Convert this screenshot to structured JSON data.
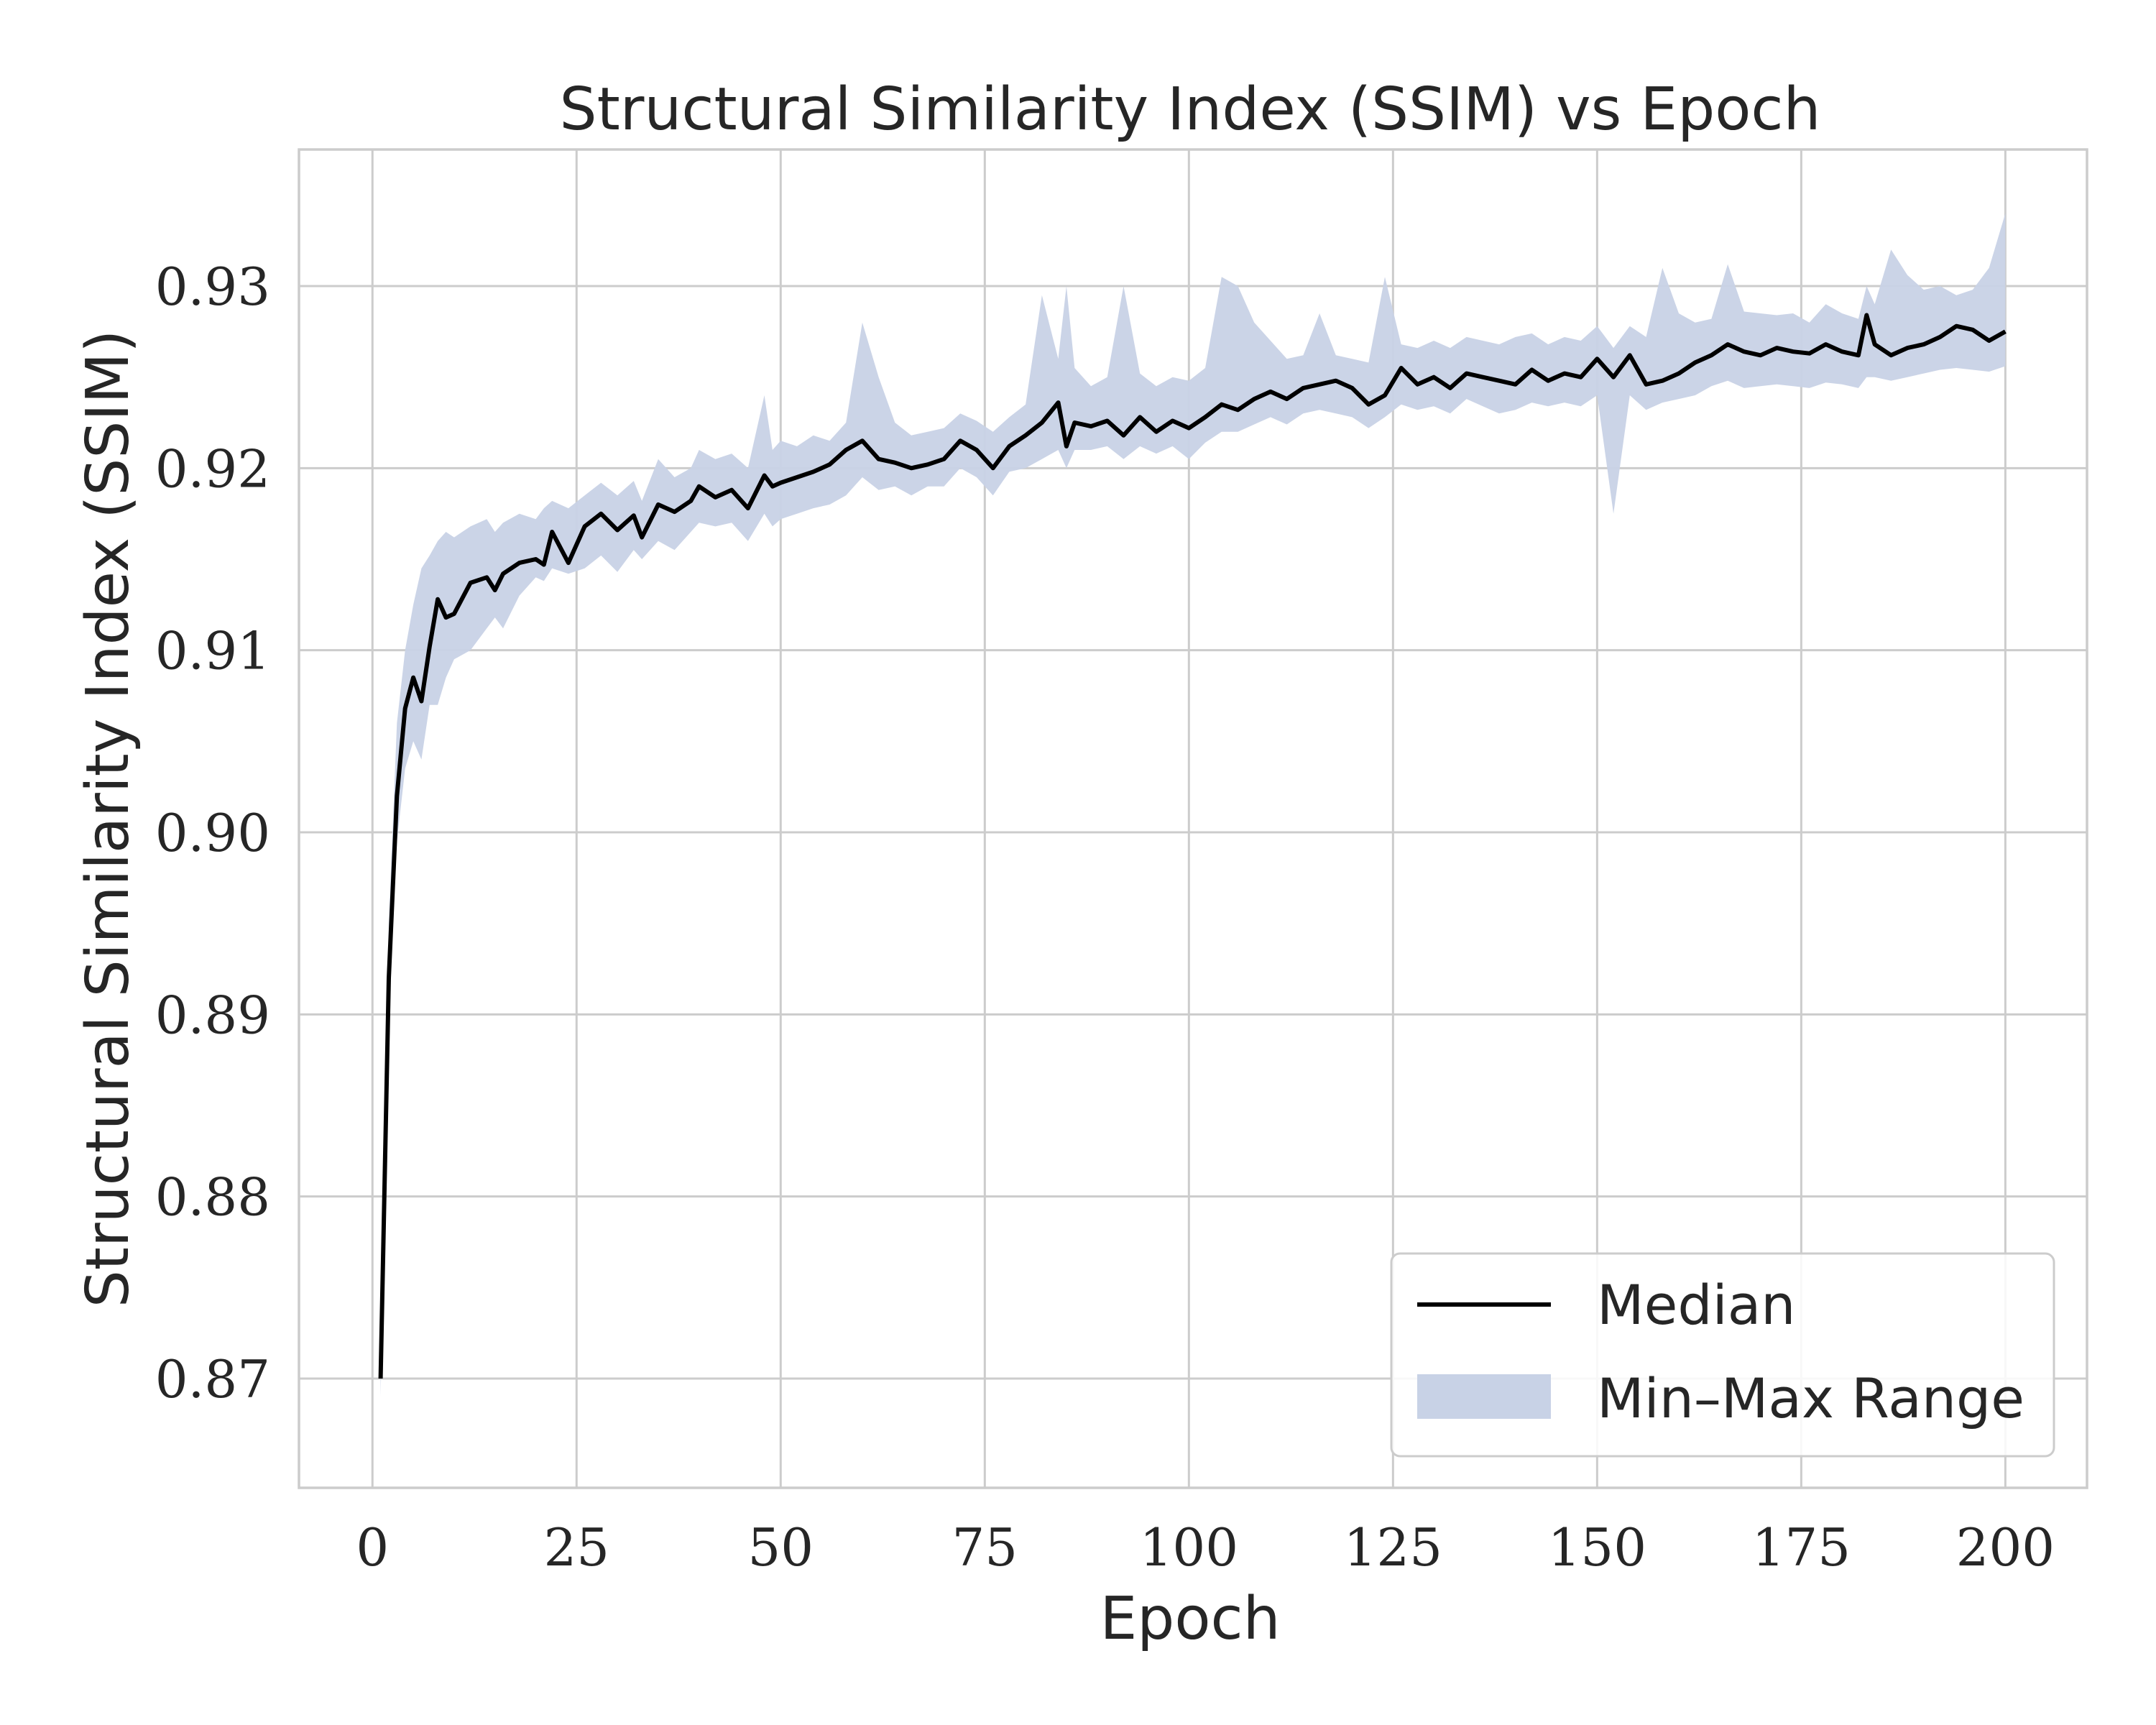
{
  "chart_data": {
    "type": "line",
    "title": "Structural Similarity Index (SSIM) vs Epoch",
    "xlabel": "Epoch",
    "ylabel": "Structural Similarity Index (SSIM)",
    "xlim": [
      -9,
      210
    ],
    "ylim": [
      0.864,
      0.9375
    ],
    "xticks": [
      0,
      25,
      50,
      75,
      100,
      125,
      150,
      175,
      200
    ],
    "xtick_labels": [
      "0",
      "25",
      "50",
      "75",
      "100",
      "125",
      "150",
      "175",
      "200"
    ],
    "yticks": [
      0.87,
      0.88,
      0.89,
      0.9,
      0.91,
      0.92,
      0.93
    ],
    "ytick_labels": [
      "0.87",
      "0.88",
      "0.89",
      "0.90",
      "0.91",
      "0.92",
      "0.93"
    ],
    "grid": true,
    "legend_position": "bottom-right",
    "colors": {
      "median": "#000000",
      "range": "#c8d2e6",
      "grid": "#cccccc",
      "text": "#262626"
    },
    "series": [
      {
        "name": "Median",
        "style": "line",
        "x": [
          1,
          2,
          3,
          4,
          5,
          6,
          7,
          8,
          9,
          10,
          12,
          14,
          15,
          16,
          18,
          20,
          21,
          22,
          24,
          26,
          28,
          30,
          32,
          33,
          35,
          37,
          39,
          40,
          42,
          44,
          46,
          48,
          49,
          50,
          52,
          54,
          56,
          58,
          60,
          62,
          64,
          66,
          68,
          70,
          72,
          74,
          76,
          78,
          80,
          82,
          84,
          85,
          86,
          88,
          90,
          92,
          94,
          96,
          98,
          100,
          102,
          104,
          106,
          108,
          110,
          112,
          114,
          116,
          118,
          120,
          122,
          124,
          126,
          128,
          130,
          132,
          134,
          136,
          138,
          140,
          142,
          144,
          146,
          148,
          150,
          152,
          154,
          156,
          158,
          160,
          162,
          164,
          166,
          168,
          170,
          172,
          174,
          176,
          178,
          180,
          182,
          183,
          184,
          186,
          188,
          190,
          192,
          194,
          196,
          198,
          200
        ],
        "y": [
          0.87,
          0.892,
          0.902,
          0.9068,
          0.9085,
          0.9072,
          0.9102,
          0.9128,
          0.9118,
          0.912,
          0.9137,
          0.914,
          0.9133,
          0.9142,
          0.9148,
          0.915,
          0.9147,
          0.9165,
          0.9148,
          0.9168,
          0.9175,
          0.9166,
          0.9174,
          0.9162,
          0.918,
          0.9176,
          0.9182,
          0.919,
          0.9184,
          0.9188,
          0.9178,
          0.9196,
          0.919,
          0.9192,
          0.9195,
          0.9198,
          0.9202,
          0.921,
          0.9215,
          0.9205,
          0.9203,
          0.92,
          0.9202,
          0.9205,
          0.9215,
          0.921,
          0.92,
          0.9212,
          0.9218,
          0.9225,
          0.9236,
          0.9212,
          0.9225,
          0.9223,
          0.9226,
          0.9218,
          0.9228,
          0.922,
          0.9226,
          0.9222,
          0.9228,
          0.9235,
          0.9232,
          0.9238,
          0.9242,
          0.9238,
          0.9244,
          0.9246,
          0.9248,
          0.9244,
          0.9235,
          0.924,
          0.9255,
          0.9246,
          0.925,
          0.9244,
          0.9252,
          0.925,
          0.9248,
          0.9246,
          0.9254,
          0.9248,
          0.9252,
          0.925,
          0.926,
          0.925,
          0.9262,
          0.9246,
          0.9248,
          0.9252,
          0.9258,
          0.9262,
          0.9268,
          0.9264,
          0.9262,
          0.9266,
          0.9264,
          0.9263,
          0.9268,
          0.9264,
          0.9262,
          0.9284,
          0.9268,
          0.9262,
          0.9266,
          0.9268,
          0.9272,
          0.9278,
          0.9276,
          0.927,
          0.9275
        ]
      },
      {
        "name": "Min–Max Range",
        "style": "band",
        "x": [
          1,
          2,
          3,
          4,
          5,
          6,
          7,
          8,
          9,
          10,
          12,
          14,
          15,
          16,
          18,
          20,
          21,
          22,
          24,
          26,
          28,
          30,
          32,
          33,
          35,
          37,
          39,
          40,
          42,
          44,
          46,
          48,
          49,
          50,
          52,
          54,
          56,
          58,
          60,
          62,
          64,
          66,
          68,
          70,
          72,
          74,
          76,
          78,
          80,
          82,
          84,
          85,
          86,
          88,
          90,
          92,
          94,
          96,
          98,
          100,
          102,
          104,
          106,
          108,
          110,
          112,
          114,
          116,
          118,
          120,
          122,
          124,
          126,
          128,
          130,
          132,
          134,
          136,
          138,
          140,
          142,
          144,
          146,
          148,
          150,
          152,
          154,
          156,
          158,
          160,
          162,
          164,
          166,
          168,
          170,
          172,
          174,
          176,
          178,
          180,
          182,
          183,
          184,
          186,
          188,
          190,
          192,
          194,
          196,
          198,
          200
        ],
        "min": [
          0.869,
          0.8905,
          0.8995,
          0.9035,
          0.905,
          0.904,
          0.907,
          0.907,
          0.9085,
          0.9095,
          0.91,
          0.9112,
          0.9118,
          0.9112,
          0.913,
          0.914,
          0.9138,
          0.9145,
          0.9142,
          0.9145,
          0.9152,
          0.9143,
          0.9155,
          0.915,
          0.916,
          0.9155,
          0.9165,
          0.917,
          0.9168,
          0.917,
          0.916,
          0.9175,
          0.9168,
          0.9172,
          0.9175,
          0.9178,
          0.918,
          0.9185,
          0.9195,
          0.9188,
          0.919,
          0.9185,
          0.919,
          0.919,
          0.92,
          0.9195,
          0.9185,
          0.9198,
          0.92,
          0.9205,
          0.921,
          0.92,
          0.921,
          0.921,
          0.9212,
          0.9205,
          0.9212,
          0.9208,
          0.9212,
          0.9205,
          0.9214,
          0.922,
          0.922,
          0.9224,
          0.9228,
          0.9224,
          0.923,
          0.9232,
          0.923,
          0.9228,
          0.9222,
          0.9228,
          0.9235,
          0.9232,
          0.9234,
          0.923,
          0.9238,
          0.9234,
          0.923,
          0.9232,
          0.9236,
          0.9234,
          0.9236,
          0.9234,
          0.924,
          0.9175,
          0.924,
          0.9232,
          0.9236,
          0.9238,
          0.924,
          0.9245,
          0.9248,
          0.9244,
          0.9245,
          0.9246,
          0.9245,
          0.9244,
          0.9247,
          0.9246,
          0.9244,
          0.925,
          0.925,
          0.9248,
          0.925,
          0.9252,
          0.9254,
          0.9255,
          0.9254,
          0.9253,
          0.9256
        ],
        "max": [
          0.87,
          0.895,
          0.906,
          0.91,
          0.9125,
          0.9145,
          0.9152,
          0.916,
          0.9165,
          0.9162,
          0.9168,
          0.9172,
          0.9165,
          0.917,
          0.9175,
          0.9172,
          0.9178,
          0.9182,
          0.9178,
          0.9185,
          0.9192,
          0.9185,
          0.9193,
          0.9182,
          0.9205,
          0.9195,
          0.92,
          0.921,
          0.9205,
          0.9208,
          0.92,
          0.924,
          0.921,
          0.9215,
          0.9212,
          0.9218,
          0.9215,
          0.9225,
          0.928,
          0.925,
          0.9225,
          0.9218,
          0.922,
          0.9222,
          0.923,
          0.9226,
          0.922,
          0.9228,
          0.9235,
          0.9295,
          0.926,
          0.93,
          0.9255,
          0.9245,
          0.925,
          0.93,
          0.9252,
          0.9245,
          0.925,
          0.9248,
          0.9255,
          0.9305,
          0.93,
          0.928,
          0.927,
          0.926,
          0.9262,
          0.9285,
          0.9262,
          0.926,
          0.9258,
          0.9305,
          0.9268,
          0.9266,
          0.927,
          0.9266,
          0.9272,
          0.927,
          0.9268,
          0.9272,
          0.9274,
          0.9268,
          0.9272,
          0.927,
          0.9278,
          0.9266,
          0.9278,
          0.9272,
          0.931,
          0.9285,
          0.928,
          0.9282,
          0.9312,
          0.9286,
          0.9285,
          0.9284,
          0.9285,
          0.928,
          0.929,
          0.9285,
          0.9282,
          0.93,
          0.929,
          0.932,
          0.9306,
          0.9298,
          0.93,
          0.9295,
          0.9298,
          0.931,
          0.934
        ]
      }
    ]
  }
}
